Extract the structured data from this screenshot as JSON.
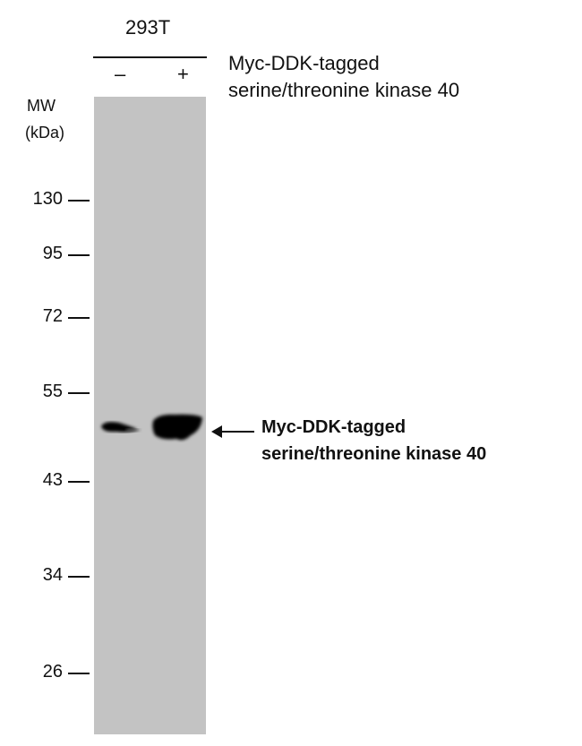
{
  "cell_line": "293T",
  "lanes": [
    {
      "sign": "–"
    },
    {
      "sign": "+"
    }
  ],
  "treatment_label": [
    "Myc-DDK-tagged",
    "serine/threonine kinase 40"
  ],
  "mw_title": [
    "MW",
    "(kDa)"
  ],
  "markers": [
    {
      "label": "130"
    },
    {
      "label": "95"
    },
    {
      "label": "72"
    },
    {
      "label": "55"
    },
    {
      "label": "43"
    },
    {
      "label": "34"
    },
    {
      "label": "26"
    }
  ],
  "band_annotation": [
    "Myc-DDK-tagged",
    "serine/threonine kinase 40"
  ],
  "colors": {
    "membrane": "#c3c3c3",
    "band": "#000000"
  }
}
